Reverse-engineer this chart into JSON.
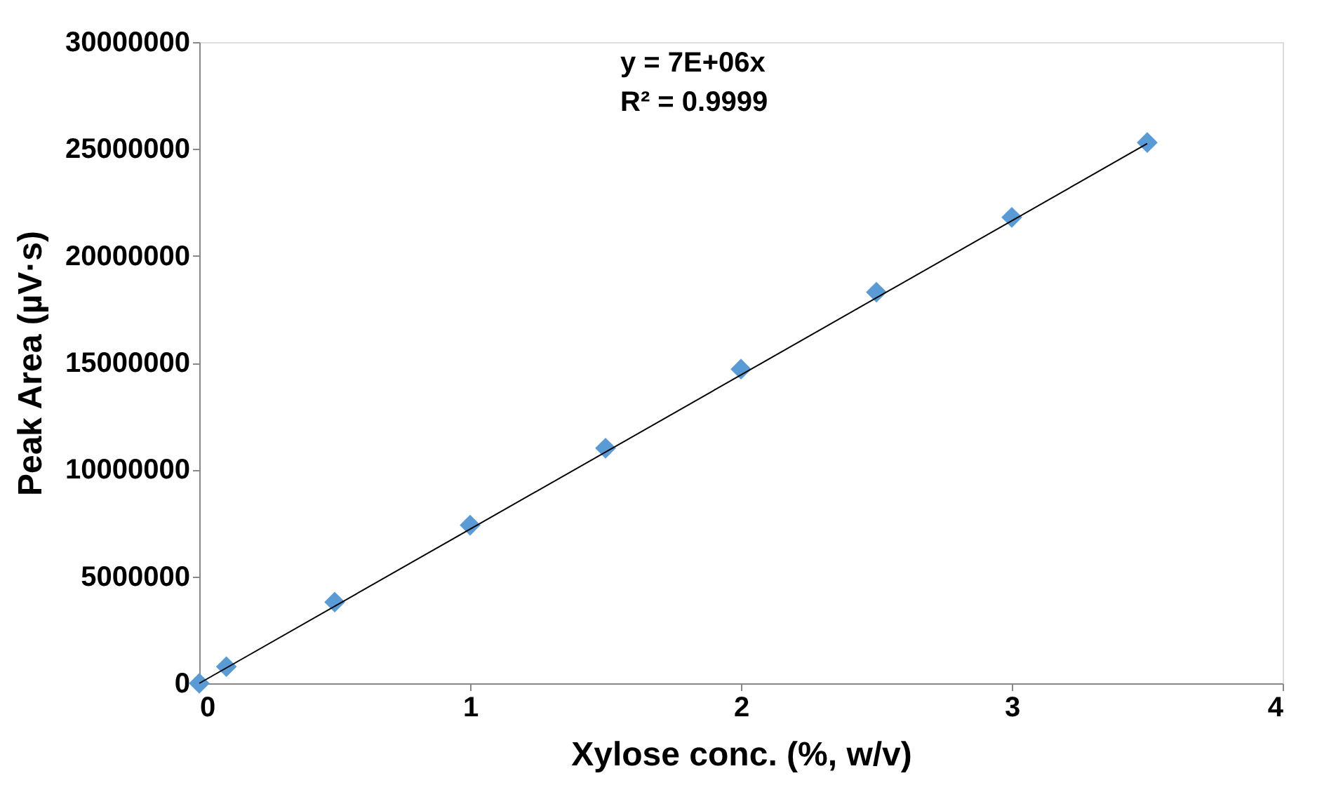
{
  "chart_data": {
    "type": "scatter",
    "xlabel": "Xylose conc. (%, w/v)",
    "ylabel": "Peak Area (µV·s)",
    "x": [
      0,
      0.1,
      0.5,
      1,
      1.5,
      2,
      2.5,
      3,
      3.5
    ],
    "series": [
      {
        "color": "#5b9bd5",
        "marker": "diamond",
        "values": [
          0,
          780000,
          3800000,
          7400000,
          11000000,
          14700000,
          18300000,
          21800000,
          25300000
        ]
      },
      {
        "type": "line",
        "color": "#000000",
        "x": [
          0,
          3.5
        ],
        "values": [
          0,
          25250000
        ]
      }
    ],
    "annotations": [
      "y = 7E+06x",
      "R² = 0.9999"
    ],
    "xlim": [
      0,
      4
    ],
    "xticks": [
      0,
      1,
      2,
      3,
      4
    ],
    "ylim": [
      0,
      30000000
    ],
    "yticks": [
      0,
      5000000,
      10000000,
      15000000,
      20000000,
      25000000,
      30000000
    ],
    "grid": false
  }
}
